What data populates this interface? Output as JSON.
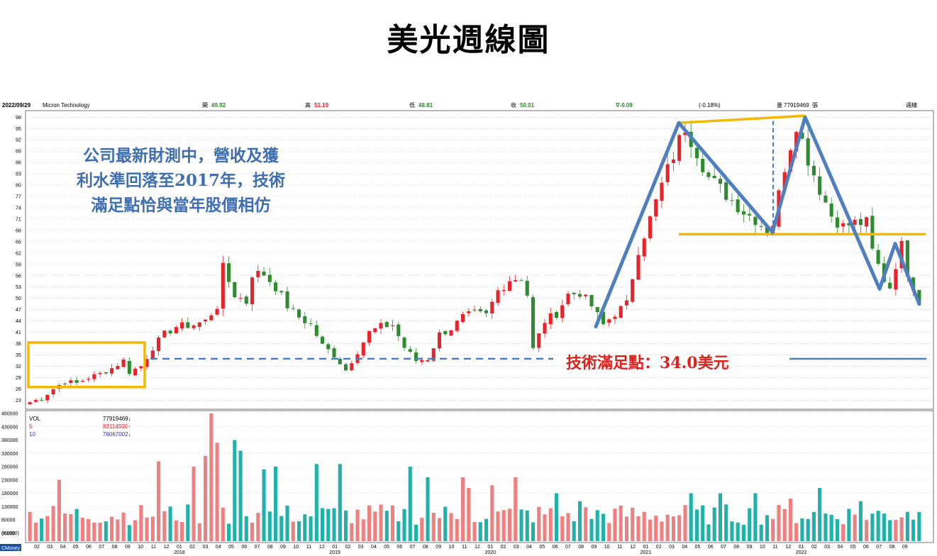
{
  "title": "美光週線圖",
  "header": {
    "date": "2022/09/29",
    "company": "Micron Technology",
    "open_label": "開",
    "open": "49.92",
    "high_label": "高",
    "high": "51.19",
    "low_label": "低",
    "low": "48.81",
    "close_label": "收",
    "close": "50.01",
    "change": "∇-0.09",
    "change_pct": "(-0.18%)",
    "volume_label": "量",
    "volume": "77919469",
    "volume_unit": "張",
    "period": "週線"
  },
  "annotation_lines": [
    "公司最新財測中，營收及獲",
    "利水準回落至2017年，技術",
    "滿足點恰與當年股價相仿"
  ],
  "support_label": "技術滿足點：34.0美元",
  "volume_legend": {
    "vol_label": "VOL",
    "vol_value": "77919469↓",
    "ma5_label": "5",
    "ma5_value": "83114500↑",
    "ma10_label": "10",
    "ma10_value": "76067002↓"
  },
  "vol_unit_label": "(X1000)",
  "brand": "CMoney",
  "colors": {
    "up": "#e8242a",
    "down": "#2e8b2e",
    "vol_up": "#f08080",
    "vol_down": "#20b2aa",
    "trend": "#4f7fbf",
    "highlight": "#f5b800",
    "ma5": "#e0201a",
    "ma10": "#3030c0"
  },
  "chart_data": {
    "type": "candlestick",
    "price_axis": {
      "ticks": [
        23,
        26,
        29,
        32,
        35,
        38,
        41,
        44,
        47,
        50,
        53,
        56,
        59,
        62,
        65,
        68,
        71,
        74,
        77,
        80,
        83,
        86,
        89,
        92,
        95,
        98
      ],
      "range": [
        21,
        99
      ]
    },
    "volume_axis": {
      "ticks": [
        "30000",
        "80000",
        "130000",
        "180000",
        "230000",
        "280000",
        "330000",
        "380000",
        "430000",
        "480000"
      ],
      "range": [
        0,
        480000
      ]
    },
    "months": [
      "02",
      "03",
      "04",
      "05",
      "06",
      "07",
      "08",
      "09",
      "10",
      "11",
      "12",
      "01",
      "02",
      "03",
      "04",
      "05",
      "06",
      "07",
      "08",
      "09",
      "10",
      "11",
      "12",
      "01",
      "02",
      "03",
      "04",
      "05",
      "06",
      "07",
      "08",
      "09",
      "10",
      "11",
      "12",
      "01",
      "02",
      "03",
      "04",
      "05",
      "06",
      "07",
      "08",
      "09",
      "10",
      "11",
      "12",
      "01",
      "02",
      "03",
      "04",
      "05",
      "06",
      "07",
      "08",
      "09",
      "10",
      "11",
      "12",
      "01",
      "02",
      "03",
      "04",
      "05",
      "06",
      "07",
      "08",
      "09"
    ],
    "year_labels": [
      {
        "index": 11,
        "label": "2018"
      },
      {
        "index": 23,
        "label": "2019"
      },
      {
        "index": 35,
        "label": "2020"
      },
      {
        "index": 47,
        "label": "2021"
      },
      {
        "index": 59,
        "label": "2022"
      }
    ],
    "close_path": [
      [
        0,
        22.5
      ],
      [
        2,
        23.5
      ],
      [
        4,
        26
      ],
      [
        6,
        28
      ],
      [
        8,
        27.5
      ],
      [
        10,
        29
      ],
      [
        12,
        30
      ],
      [
        14,
        31.5
      ],
      [
        16,
        33.5
      ],
      [
        17,
        30.5
      ],
      [
        19,
        32
      ],
      [
        21,
        37
      ],
      [
        23,
        40.5
      ],
      [
        25,
        42.5
      ],
      [
        28,
        43
      ],
      [
        30,
        44
      ],
      [
        32,
        48
      ],
      [
        33,
        58
      ],
      [
        35,
        51
      ],
      [
        37,
        49
      ],
      [
        38,
        56.5
      ],
      [
        40,
        56.5
      ],
      [
        42,
        53
      ],
      [
        44,
        48
      ],
      [
        46,
        45
      ],
      [
        48,
        43
      ],
      [
        50,
        37.5
      ],
      [
        52,
        35
      ],
      [
        54,
        31
      ],
      [
        56,
        36
      ],
      [
        58,
        41
      ],
      [
        60,
        42.5
      ],
      [
        62,
        43
      ],
      [
        64,
        37
      ],
      [
        66,
        33.5
      ],
      [
        68,
        34
      ],
      [
        70,
        40.5
      ],
      [
        72,
        42
      ],
      [
        74,
        45
      ],
      [
        76,
        46
      ],
      [
        78,
        45.5
      ],
      [
        80,
        52
      ],
      [
        82,
        55
      ],
      [
        84,
        55.5
      ],
      [
        85,
        51
      ],
      [
        86,
        36.5
      ],
      [
        88,
        44
      ],
      [
        90,
        46
      ],
      [
        92,
        51
      ],
      [
        94,
        51.5
      ],
      [
        96,
        48
      ],
      [
        98,
        43
      ],
      [
        100,
        46
      ],
      [
        102,
        48.5
      ],
      [
        104,
        63
      ],
      [
        106,
        71
      ],
      [
        108,
        80
      ],
      [
        110,
        88
      ],
      [
        112,
        95.5
      ],
      [
        114,
        89
      ],
      [
        116,
        82
      ],
      [
        118,
        79
      ],
      [
        120,
        76
      ],
      [
        122,
        73
      ],
      [
        124,
        71
      ],
      [
        126,
        68
      ],
      [
        127,
        70
      ],
      [
        129,
        85
      ],
      [
        131,
        96.5
      ],
      [
        133,
        87
      ],
      [
        135,
        79
      ],
      [
        137,
        72
      ],
      [
        139,
        69
      ],
      [
        141,
        70
      ],
      [
        143,
        70
      ],
      [
        144,
        62.5
      ],
      [
        146,
        55
      ],
      [
        147,
        53
      ],
      [
        148,
        59
      ],
      [
        149,
        64
      ],
      [
        150,
        57
      ],
      [
        152,
        49.5
      ]
    ],
    "volume_highlights": [
      [
        5,
        230000
      ],
      [
        22,
        300000
      ],
      [
        28,
        280000
      ],
      [
        30,
        320000
      ],
      [
        31,
        480000
      ],
      [
        32,
        370000
      ],
      [
        35,
        380000
      ],
      [
        36,
        340000
      ],
      [
        40,
        270000
      ],
      [
        42,
        280000
      ],
      [
        49,
        290000
      ],
      [
        53,
        290000
      ],
      [
        65,
        280000
      ],
      [
        68,
        240000
      ],
      [
        74,
        240000
      ],
      [
        75,
        200000
      ],
      [
        79,
        210000
      ],
      [
        83,
        240000
      ],
      [
        90,
        180000
      ],
      [
        94,
        150000
      ],
      [
        113,
        180000
      ],
      [
        118,
        180000
      ],
      [
        124,
        180000
      ],
      [
        130,
        160000
      ],
      [
        135,
        200000
      ],
      [
        142,
        150000
      ],
      [
        150,
        110000
      ]
    ],
    "support_level": 34.0
  }
}
